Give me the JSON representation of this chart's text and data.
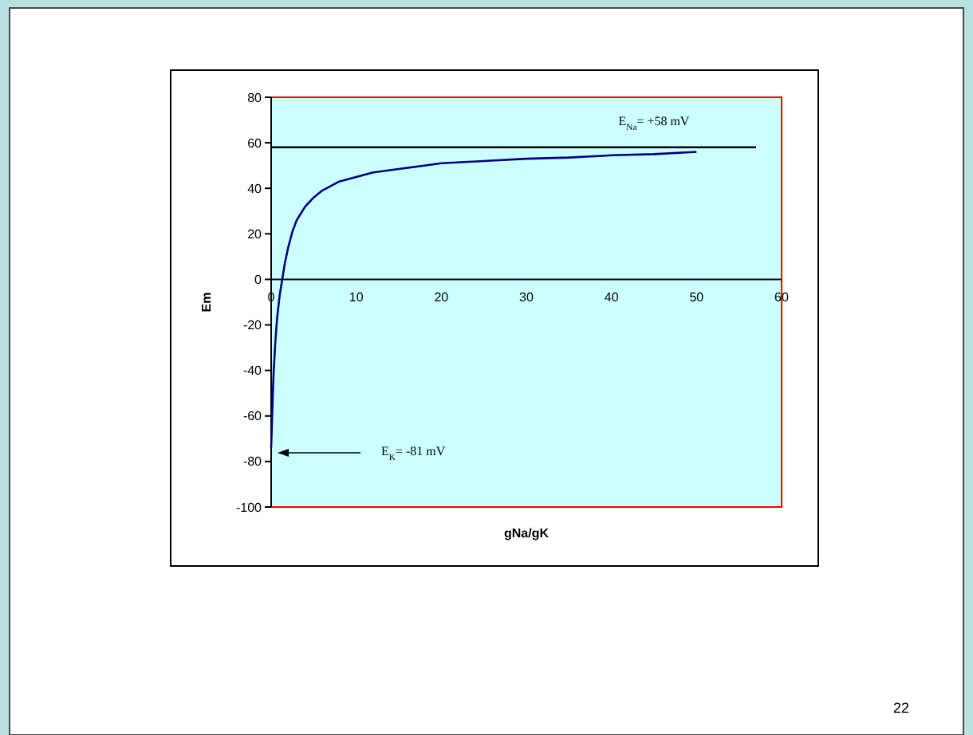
{
  "chart_data": {
    "type": "line",
    "xlabel": "gNa/gK",
    "ylabel": "Em",
    "xlim": [
      0,
      60
    ],
    "xticks": [
      0,
      10,
      20,
      30,
      40,
      50,
      60
    ],
    "ylim": [
      -100,
      80
    ],
    "yticks": [
      -100,
      -80,
      -60,
      -40,
      -20,
      0,
      20,
      40,
      60,
      80
    ],
    "grid": false,
    "marker": "none",
    "line_style": "solid",
    "series": [
      {
        "color": "#000080",
        "x": [
          0,
          0.1,
          0.2,
          0.3,
          0.5,
          0.7,
          1,
          1.3,
          1.6,
          2,
          2.5,
          3,
          4,
          5,
          6,
          7,
          8,
          10,
          12,
          15,
          18,
          20,
          25,
          30,
          35,
          40,
          45,
          50
        ],
        "values": [
          -74,
          -62,
          -50,
          -40,
          -27,
          -17,
          -7,
          0,
          7,
          14,
          21,
          26,
          32,
          36,
          39,
          41,
          43,
          45,
          47,
          48.5,
          50,
          51,
          52,
          53,
          53.5,
          54.5,
          55,
          56
        ]
      },
      {
        "color": "#000000",
        "x": [
          0,
          57
        ],
        "values": [
          58,
          58
        ]
      }
    ],
    "annotations": [
      {
        "text": "E$_{Na}$= +58 mV",
        "x": 45,
        "y": 58
      },
      "E$_{K}$= -81 mV",
      "22"
    ]
  }
}
